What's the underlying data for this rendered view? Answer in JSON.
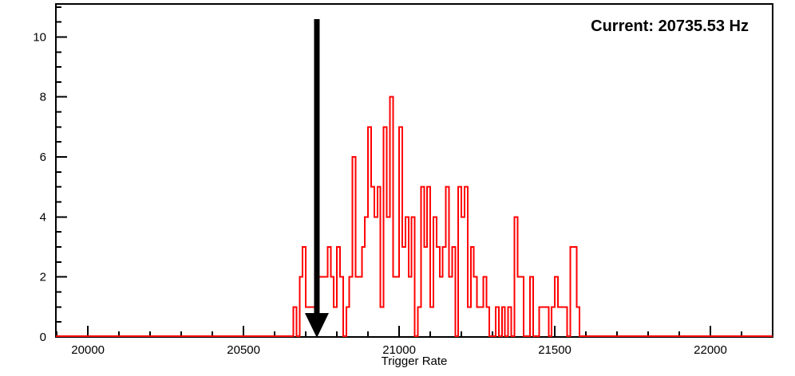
{
  "app": {
    "background_color": "#ffffff",
    "frame_color": "#000000"
  },
  "annotation": {
    "text": "Current: 20735.53 Hz",
    "color": "#000000"
  },
  "chart_data": {
    "type": "bar",
    "subtype": "step-histogram",
    "title": "",
    "xlabel": "Trigger Rate",
    "ylabel": "",
    "xlim": [
      19897,
      22200
    ],
    "ylim": [
      0,
      11.1
    ],
    "x_major_ticks": [
      20000,
      20500,
      21000,
      21500,
      22000
    ],
    "x_minor_tick_step": 100,
    "y_major_ticks": [
      0,
      2,
      4,
      6,
      8,
      10
    ],
    "y_minor_tick_step": 0.5,
    "grid": false,
    "legend": false,
    "series": [
      {
        "name": "trigger-rate-distribution",
        "color": "#ff0000",
        "bin_start": 20660,
        "bin_width": 10,
        "values": [
          1,
          0,
          2,
          3,
          1,
          1,
          1,
          1,
          2,
          2,
          2,
          3,
          2,
          1,
          3,
          2,
          0,
          1,
          2,
          6,
          2,
          2,
          3,
          4,
          7,
          5,
          4,
          5,
          1,
          7,
          4,
          8,
          2,
          2,
          7,
          3,
          4,
          2,
          4,
          0,
          1,
          5,
          3,
          5,
          1,
          4,
          3,
          2,
          3,
          5,
          2,
          3,
          0,
          5,
          4,
          5,
          1,
          3,
          2,
          1,
          1,
          2,
          1,
          0,
          0,
          1,
          0,
          1,
          0,
          1,
          0,
          4,
          2,
          2,
          0,
          0,
          2,
          0,
          0,
          1,
          1,
          1,
          0,
          1,
          2,
          1,
          1,
          1,
          0,
          3,
          3,
          1
        ]
      }
    ],
    "marker": {
      "type": "down-arrow",
      "x": 20735.53,
      "color": "#000000"
    }
  }
}
